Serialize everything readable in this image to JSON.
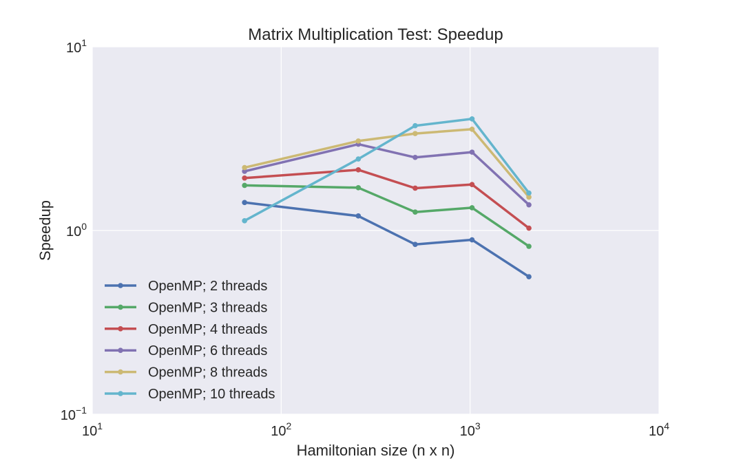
{
  "chart_data": {
    "type": "line",
    "title": "Matrix Multiplication Test: Speedup",
    "xlabel": "Hamiltonian size (n x n)",
    "ylabel": "Speedup",
    "xscale": "log",
    "yscale": "log",
    "xlim": [
      10,
      10000
    ],
    "ylim": [
      0.1,
      10
    ],
    "xticks": [
      {
        "value": 10,
        "base": "10",
        "exp": "1"
      },
      {
        "value": 100,
        "base": "10",
        "exp": "2"
      },
      {
        "value": 1000,
        "base": "10",
        "exp": "3"
      },
      {
        "value": 10000,
        "base": "10",
        "exp": "4"
      }
    ],
    "yticks": [
      {
        "value": 0.1,
        "base": "10",
        "exp": "−1"
      },
      {
        "value": 1,
        "base": "10",
        "exp": "0"
      },
      {
        "value": 10,
        "base": "10",
        "exp": "1"
      }
    ],
    "grid": true,
    "legend_position": "lower-left",
    "background": "#eaeaf2",
    "x": [
      64,
      256,
      512,
      1024,
      2048
    ],
    "series": [
      {
        "name": "OpenMP; 2 threads",
        "color": "#4c72b0",
        "values": [
          1.42,
          1.2,
          0.84,
          0.89,
          0.56
        ]
      },
      {
        "name": "OpenMP; 3 threads",
        "color": "#55a868",
        "values": [
          1.76,
          1.71,
          1.26,
          1.33,
          0.82
        ]
      },
      {
        "name": "OpenMP; 4 threads",
        "color": "#c44e52",
        "values": [
          1.93,
          2.14,
          1.7,
          1.78,
          1.03
        ]
      },
      {
        "name": "OpenMP; 6 threads",
        "color": "#8172b2",
        "values": [
          2.1,
          2.95,
          2.5,
          2.67,
          1.38
        ]
      },
      {
        "name": "OpenMP; 8 threads",
        "color": "#ccb974",
        "values": [
          2.2,
          3.07,
          3.37,
          3.56,
          1.52
        ]
      },
      {
        "name": "OpenMP; 10 threads",
        "color": "#64b5cd",
        "values": [
          1.13,
          2.45,
          3.72,
          4.05,
          1.6
        ]
      }
    ]
  }
}
